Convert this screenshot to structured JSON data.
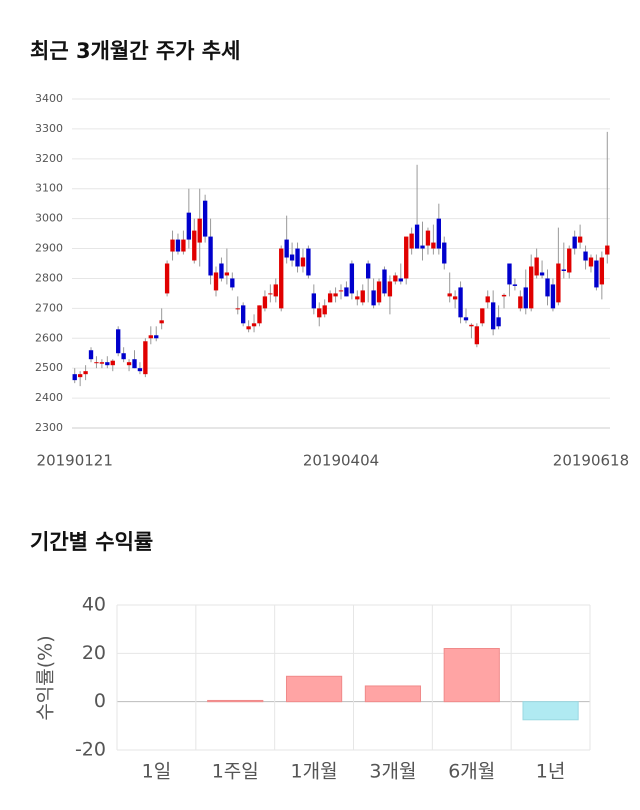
{
  "chart_data": [
    {
      "type": "candlestick",
      "title": "최근 3개월간 주가 추세",
      "categories": [
        "20190121",
        null,
        null,
        null,
        null,
        null,
        null,
        null,
        null,
        null,
        null,
        null,
        null,
        null,
        null,
        null,
        null,
        null,
        null,
        null,
        null,
        null,
        null,
        null,
        null,
        null,
        null,
        null,
        null,
        null,
        null,
        null,
        null,
        null,
        null,
        null,
        null,
        null,
        null,
        null,
        null,
        null,
        null,
        null,
        null,
        null,
        null,
        null,
        null,
        "20190404",
        null,
        null,
        null,
        null,
        null,
        null,
        null,
        null,
        null,
        null,
        null,
        null,
        null,
        null,
        null,
        null,
        null,
        null,
        null,
        null,
        null,
        null,
        null,
        null,
        null,
        null,
        null,
        null,
        null,
        null,
        null,
        null,
        null,
        null,
        null,
        null,
        null,
        null,
        null,
        null,
        null,
        null,
        null,
        null,
        null,
        "20190618",
        null,
        null,
        null
      ],
      "ohlc": [
        [
          2480,
          2500,
          2450,
          2460
        ],
        [
          2470,
          2490,
          2440,
          2480
        ],
        [
          2480,
          2510,
          2460,
          2490
        ],
        [
          2560,
          2570,
          2520,
          2530
        ],
        [
          2520,
          2540,
          2500,
          2520
        ],
        [
          2515,
          2530,
          2500,
          2520
        ],
        [
          2520,
          2540,
          2500,
          2510
        ],
        [
          2510,
          2530,
          2490,
          2525
        ],
        [
          2630,
          2640,
          2540,
          2550
        ],
        [
          2550,
          2570,
          2520,
          2530
        ],
        [
          2510,
          2530,
          2490,
          2520
        ],
        [
          2530,
          2560,
          2500,
          2500
        ],
        [
          2500,
          2520,
          2480,
          2490
        ],
        [
          2480,
          2600,
          2470,
          2590
        ],
        [
          2600,
          2640,
          2580,
          2610
        ],
        [
          2610,
          2640,
          2590,
          2600
        ],
        [
          2650,
          2700,
          2630,
          2660
        ],
        [
          2750,
          2860,
          2740,
          2850
        ],
        [
          2890,
          2960,
          2860,
          2930
        ],
        [
          2930,
          2950,
          2880,
          2890
        ],
        [
          2890,
          2960,
          2880,
          2930
        ],
        [
          3020,
          3100,
          2900,
          2930
        ],
        [
          2860,
          3000,
          2850,
          2960
        ],
        [
          2920,
          3100,
          2840,
          3000
        ],
        [
          3060,
          3080,
          2920,
          2940
        ],
        [
          2940,
          3000,
          2780,
          2810
        ],
        [
          2760,
          2840,
          2740,
          2820
        ],
        [
          2850,
          2870,
          2790,
          2800
        ],
        [
          2810,
          2900,
          2780,
          2820
        ],
        [
          2800,
          2820,
          2760,
          2770
        ],
        [
          2700,
          2740,
          2680,
          2700
        ],
        [
          2710,
          2720,
          2640,
          2650
        ],
        [
          2630,
          2660,
          2620,
          2640
        ],
        [
          2640,
          2680,
          2620,
          2650
        ],
        [
          2650,
          2710,
          2640,
          2710
        ],
        [
          2700,
          2760,
          2690,
          2740
        ],
        [
          2750,
          2780,
          2720,
          2750
        ],
        [
          2740,
          2800,
          2720,
          2780
        ],
        [
          2700,
          2910,
          2690,
          2900
        ],
        [
          2930,
          3010,
          2850,
          2870
        ],
        [
          2880,
          2920,
          2840,
          2860
        ],
        [
          2900,
          2920,
          2820,
          2840
        ],
        [
          2840,
          2900,
          2820,
          2870
        ],
        [
          2900,
          2910,
          2800,
          2810
        ],
        [
          2750,
          2780,
          2680,
          2700
        ],
        [
          2670,
          2720,
          2640,
          2700
        ],
        [
          2680,
          2730,
          2670,
          2710
        ],
        [
          2720,
          2760,
          2720,
          2750
        ],
        [
          2740,
          2770,
          2720,
          2750
        ],
        [
          2760,
          2780,
          2730,
          2760
        ],
        [
          2770,
          2790,
          2740,
          2740
        ],
        [
          2850,
          2860,
          2730,
          2750
        ],
        [
          2730,
          2760,
          2710,
          2740
        ],
        [
          2720,
          2780,
          2710,
          2760
        ],
        [
          2850,
          2860,
          2720,
          2800
        ],
        [
          2760,
          2800,
          2700,
          2710
        ],
        [
          2720,
          2800,
          2710,
          2790
        ],
        [
          2830,
          2840,
          2740,
          2750
        ],
        [
          2740,
          2810,
          2680,
          2790
        ],
        [
          2790,
          2820,
          2780,
          2810
        ],
        [
          2800,
          2850,
          2780,
          2790
        ],
        [
          2800,
          2940,
          2780,
          2940
        ],
        [
          2900,
          2970,
          2880,
          2950
        ],
        [
          2980,
          3180,
          2900,
          2900
        ],
        [
          2910,
          2990,
          2860,
          2900
        ],
        [
          2910,
          2970,
          2880,
          2960
        ],
        [
          2900,
          2980,
          2880,
          2920
        ],
        [
          3000,
          3050,
          2880,
          2900
        ],
        [
          2920,
          2940,
          2830,
          2850
        ],
        [
          2740,
          2820,
          2720,
          2750
        ],
        [
          2730,
          2760,
          2700,
          2740
        ],
        [
          2770,
          2790,
          2650,
          2670
        ],
        [
          2670,
          2700,
          2650,
          2660
        ],
        [
          2640,
          2650,
          2600,
          2645
        ],
        [
          2580,
          2650,
          2570,
          2640
        ],
        [
          2650,
          2700,
          2640,
          2700
        ],
        [
          2720,
          2760,
          2700,
          2740
        ],
        [
          2720,
          2760,
          2610,
          2630
        ],
        [
          2670,
          2710,
          2630,
          2640
        ],
        [
          2740,
          2750,
          2700,
          2745
        ],
        [
          2850,
          2850,
          2740,
          2780
        ],
        [
          2780,
          2800,
          2760,
          2775
        ],
        [
          2700,
          2760,
          2690,
          2740
        ],
        [
          2770,
          2830,
          2680,
          2700
        ],
        [
          2700,
          2880,
          2690,
          2840
        ],
        [
          2810,
          2900,
          2800,
          2870
        ],
        [
          2820,
          2860,
          2800,
          2810
        ],
        [
          2800,
          2830,
          2710,
          2740
        ],
        [
          2780,
          2800,
          2690,
          2700
        ],
        [
          2720,
          2970,
          2710,
          2850
        ],
        [
          2830,
          2920,
          2800,
          2825
        ],
        [
          2820,
          2910,
          2800,
          2900
        ],
        [
          2940,
          2960,
          2880,
          2900
        ],
        [
          2920,
          2980,
          2900,
          2940
        ],
        [
          2890,
          2910,
          2830,
          2860
        ],
        [
          2840,
          2880,
          2820,
          2870
        ],
        [
          2860,
          2880,
          2760,
          2770
        ],
        [
          2780,
          2890,
          2730,
          2870
        ],
        [
          2880,
          3290,
          2850,
          2910
        ]
      ],
      "up_color": "#e00000",
      "down_color": "#0000cc",
      "ylim": [
        2300,
        3400
      ],
      "yticks": [
        2300,
        2400,
        2500,
        2600,
        2700,
        2800,
        2900,
        3000,
        3100,
        3200,
        3300,
        3400
      ],
      "grid": true
    },
    {
      "type": "bar",
      "title": "기간별 수익률",
      "ylabel": "수익률(%)",
      "categories": [
        "1일",
        "1주일",
        "1개월",
        "3개월",
        "6개월",
        "1년"
      ],
      "values": [
        0,
        0.5,
        10.5,
        6.5,
        22,
        -7.5
      ],
      "positive_color": "#ffa4a4",
      "negative_color": "#b0eaf2",
      "ylim": [
        -20,
        40
      ],
      "yticks": [
        -20,
        0,
        20,
        40
      ],
      "grid": true
    }
  ]
}
